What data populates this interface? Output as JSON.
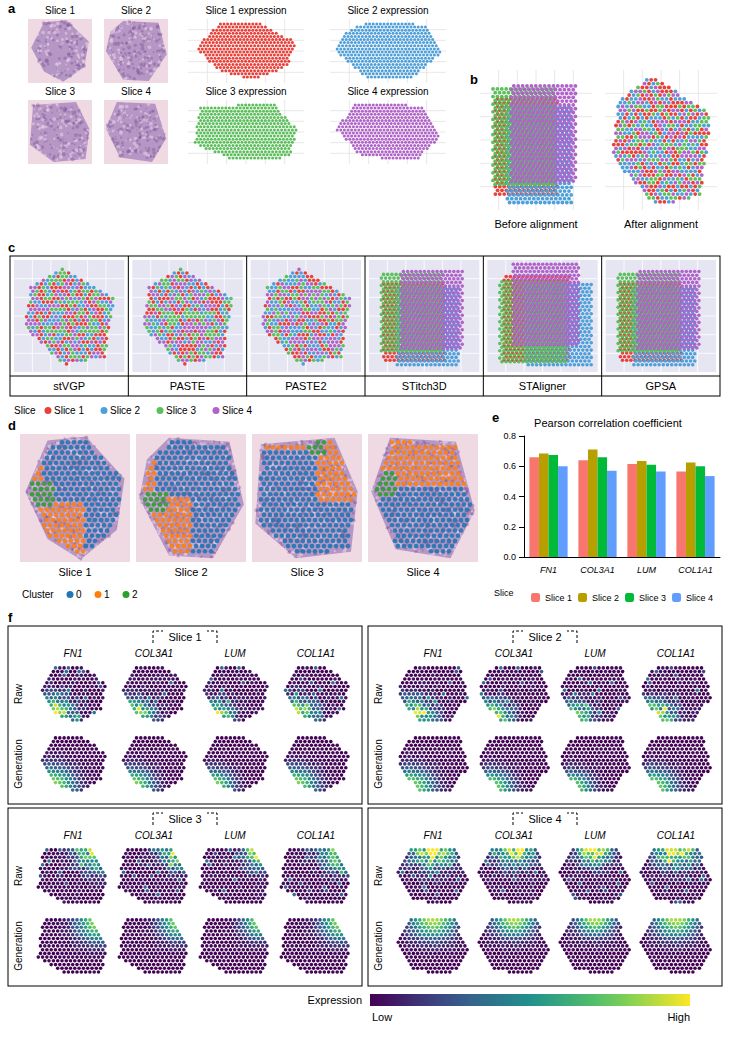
{
  "figure": {
    "panel_letters": [
      "a",
      "b",
      "c",
      "d",
      "e",
      "f"
    ],
    "a": {
      "he_titles": [
        "Slice 1",
        "Slice 2",
        "Slice 3",
        "Slice 4"
      ],
      "expression_titles": [
        "Slice 1 expression",
        "Slice 2 expression",
        "Slice 3 expression",
        "Slice 4 expression"
      ]
    },
    "b": {
      "titles": [
        "Before alignment",
        "After alignment"
      ]
    },
    "slices": {
      "title": "Slice",
      "items": [
        {
          "name": "Slice 1",
          "color": "#e8413a"
        },
        {
          "name": "Slice 2",
          "color": "#4f9fd9"
        },
        {
          "name": "Slice 3",
          "color": "#5cbf5c"
        },
        {
          "name": "Slice 4",
          "color": "#b063c9"
        }
      ]
    },
    "c": {
      "methods": [
        "stVGP",
        "PASTE",
        "PASTE2",
        "STitch3D",
        "STAligner",
        "GPSA"
      ]
    },
    "d": {
      "titles": [
        "Slice 1",
        "Slice 2",
        "Slice 3",
        "Slice 4"
      ],
      "legend_title": "Cluster",
      "clusters": [
        {
          "name": "0",
          "color": "#1f77b4"
        },
        {
          "name": "1",
          "color": "#ff7f0e"
        },
        {
          "name": "2",
          "color": "#2ca02c"
        }
      ]
    },
    "f": {
      "slices": [
        "Slice 1",
        "Slice 2",
        "Slice 3",
        "Slice 4"
      ],
      "genes": [
        "FN1",
        "COL3A1",
        "LUM",
        "COL1A1"
      ],
      "rows": [
        "Raw",
        "Generation"
      ],
      "colorbar": {
        "title": "Expression",
        "low": "Low",
        "high": "High"
      }
    }
  },
  "chart_data": {
    "type": "bar",
    "title": "Pearson correlation coefficient",
    "categories": [
      "FN1",
      "COL3A1",
      "LUM",
      "COL1A1"
    ],
    "series": [
      {
        "name": "Slice 1",
        "color": "#f8766d",
        "values": [
          0.66,
          0.64,
          0.615,
          0.565
        ]
      },
      {
        "name": "Slice 2",
        "color": "#b79f00",
        "values": [
          0.685,
          0.71,
          0.635,
          0.625
        ]
      },
      {
        "name": "Slice 3",
        "color": "#00ba38",
        "values": [
          0.675,
          0.66,
          0.61,
          0.6
        ]
      },
      {
        "name": "Slice 4",
        "color": "#619cff",
        "values": [
          0.6,
          0.57,
          0.565,
          0.535
        ]
      }
    ],
    "legend_title": "Slice",
    "ylim": [
      0,
      0.8
    ],
    "yticks": [
      {
        "value": 0,
        "label": "0.0"
      },
      0.2,
      0.4,
      0.6,
      0.8
    ],
    "grid": false,
    "legend": "bottom"
  }
}
